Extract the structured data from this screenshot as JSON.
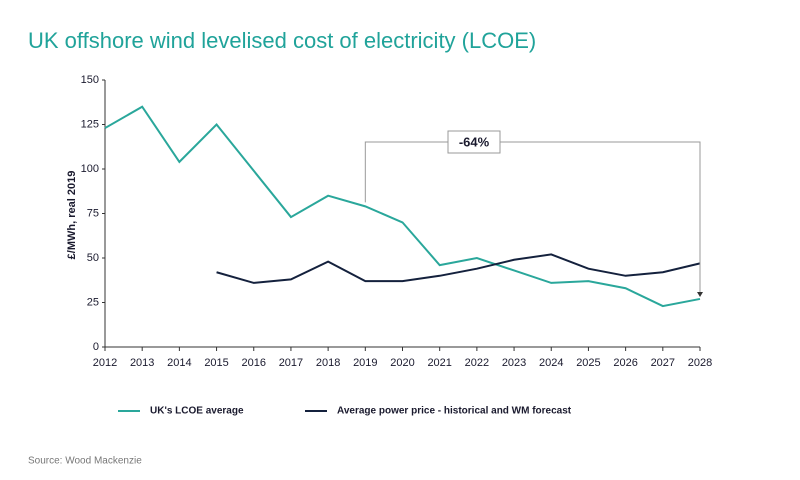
{
  "chart_data": {
    "type": "line",
    "title": "UK offshore wind levelised cost of electricity (LCOE)",
    "y_label": "£/MWh, real 2019",
    "source": "Source: Wood Mackenzie",
    "annotation": "-64%",
    "categories": [
      "2012",
      "2013",
      "2014",
      "2015",
      "2016",
      "2017",
      "2018",
      "2019",
      "2020",
      "2021",
      "2022",
      "2023",
      "2024",
      "2025",
      "2026",
      "2027",
      "2028"
    ],
    "series": [
      {
        "name": "UK's LCOE average",
        "color": "#2aa79b",
        "values": [
          123,
          135,
          104,
          125,
          99,
          73,
          85,
          79,
          70,
          46,
          50,
          43,
          36,
          37,
          33,
          23,
          27
        ]
      },
      {
        "name": "Average power price - historical and WM forecast",
        "color": "#14213d",
        "values": [
          null,
          null,
          null,
          42,
          36,
          38,
          48,
          37,
          37,
          40,
          44,
          49,
          52,
          44,
          40,
          42,
          47
        ]
      }
    ],
    "ylim": [
      0,
      150
    ],
    "yticks": [
      0,
      25,
      50,
      75,
      100,
      125,
      150
    ],
    "grid": false
  }
}
